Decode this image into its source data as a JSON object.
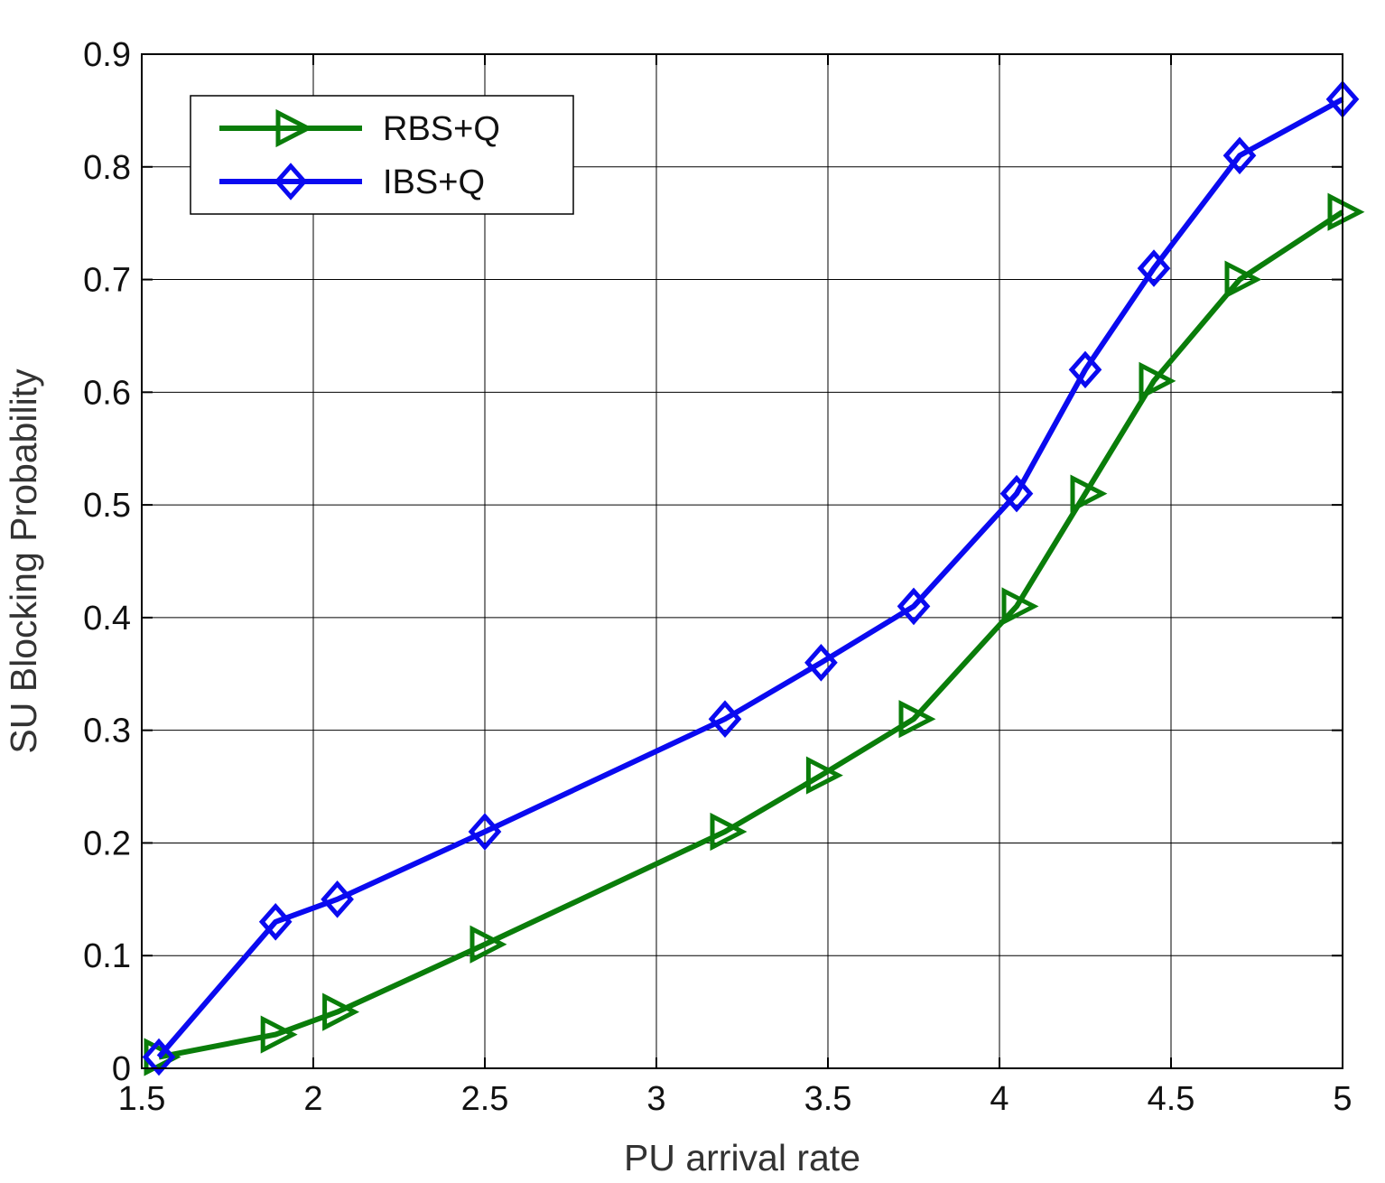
{
  "chart_data": {
    "type": "line",
    "title": "",
    "xlabel": "PU arrival rate",
    "ylabel": "SU Blocking Probability",
    "xlim": [
      1.5,
      5
    ],
    "ylim": [
      0,
      0.9
    ],
    "xticks": [
      1.5,
      2,
      2.5,
      3,
      3.5,
      4,
      4.5,
      5
    ],
    "yticks": [
      0,
      0.1,
      0.2,
      0.3,
      0.4,
      0.5,
      0.6,
      0.7,
      0.8,
      0.9
    ],
    "xtick_labels": [
      "1.5",
      "2",
      "2.5",
      "3",
      "3.5",
      "4",
      "4.5",
      "5"
    ],
    "ytick_labels": [
      "0",
      "0.1",
      "0.2",
      "0.3",
      "0.4",
      "0.5",
      "0.6",
      "0.7",
      "0.8",
      "0.9"
    ],
    "grid": true,
    "legend_position": "top-left",
    "series": [
      {
        "name": "RBS+Q",
        "color": "#0a7d0a",
        "marker": "triangle-right",
        "x": [
          1.55,
          1.89,
          2.07,
          2.5,
          3.2,
          3.48,
          3.75,
          4.05,
          4.25,
          4.45,
          4.7,
          5.0
        ],
        "y": [
          0.01,
          0.03,
          0.05,
          0.11,
          0.21,
          0.26,
          0.31,
          0.41,
          0.51,
          0.61,
          0.7,
          0.76
        ]
      },
      {
        "name": "IBS+Q",
        "color": "#0a0af0",
        "marker": "diamond",
        "x": [
          1.55,
          1.89,
          2.07,
          2.5,
          3.2,
          3.48,
          3.75,
          4.05,
          4.25,
          4.45,
          4.7,
          5.0
        ],
        "y": [
          0.01,
          0.13,
          0.15,
          0.21,
          0.31,
          0.36,
          0.41,
          0.51,
          0.62,
          0.71,
          0.81,
          0.86
        ]
      }
    ]
  }
}
